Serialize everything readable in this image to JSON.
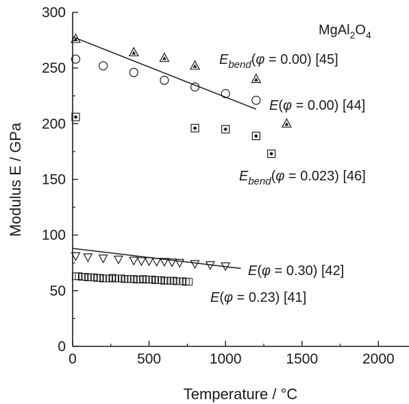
{
  "chart_data": {
    "type": "scatter",
    "xlabel": "Temperature / °C",
    "ylabel": "Modulus E / GPa",
    "xlim": [
      0,
      2200
    ],
    "ylim": [
      0,
      300
    ],
    "xticks": [
      0,
      500,
      1000,
      1500,
      2000
    ],
    "yticks": [
      0,
      50,
      100,
      150,
      200,
      250,
      300
    ],
    "grid": false,
    "legend": "none",
    "annotations": {
      "material": "MgAl2O4",
      "ebend_000": "Ebend(φ = 0.00)  [45]",
      "e_000": "E(φ = 0.00) [44]",
      "ebend_0023": "Ebend(φ = 0.023) [46]",
      "e_030": "E(φ = 0.30) [42]",
      "e_023": "E(φ = 0.23) [41]"
    },
    "series": [
      {
        "marker": "triangle-up-dot",
        "x": [
          20,
          400,
          600,
          800,
          1200,
          1400
        ],
        "y": [
          276,
          264,
          259,
          252,
          240,
          200
        ]
      },
      {
        "marker": "circle",
        "x": [
          20,
          200,
          400,
          600,
          800,
          1000,
          1200
        ],
        "y": [
          258,
          252,
          246,
          239,
          233,
          227,
          221
        ]
      },
      {
        "marker": "square-dot",
        "x": [
          20,
          800,
          1000,
          1200,
          1300
        ],
        "y": [
          206,
          196,
          195,
          189,
          173
        ]
      },
      {
        "marker": "triangle-down",
        "x": [
          20,
          100,
          200,
          300,
          400,
          450,
          500,
          550,
          600,
          650,
          700,
          800,
          900,
          1000
        ],
        "y": [
          81,
          80,
          79,
          78,
          77,
          76.5,
          76.5,
          76,
          76,
          75.5,
          75,
          74,
          73,
          72
        ]
      },
      {
        "marker": "square",
        "x": [
          20,
          40,
          60,
          80,
          100,
          120,
          140,
          160,
          180,
          200,
          220,
          240,
          260,
          280,
          300,
          320,
          340,
          360,
          380,
          400,
          420,
          440,
          460,
          480,
          500,
          520,
          540,
          560,
          580,
          600,
          620,
          640,
          660,
          680,
          700,
          720,
          740,
          760
        ],
        "y": [
          63,
          63,
          62.5,
          62.5,
          62,
          62,
          62,
          61.5,
          61.5,
          61,
          61,
          61,
          61.5,
          61,
          61,
          61,
          60.5,
          60.5,
          60.5,
          60.5,
          60,
          60,
          60.5,
          60,
          60,
          60,
          59.5,
          59.5,
          59.5,
          59,
          59,
          59,
          59,
          58.5,
          58.5,
          58.5,
          58,
          58
        ]
      }
    ],
    "fit_lines": [
      {
        "x": [
          0,
          1200
        ],
        "y": [
          278,
          213
        ]
      },
      {
        "x": [
          0,
          1100
        ],
        "y": [
          88,
          70
        ]
      }
    ]
  }
}
